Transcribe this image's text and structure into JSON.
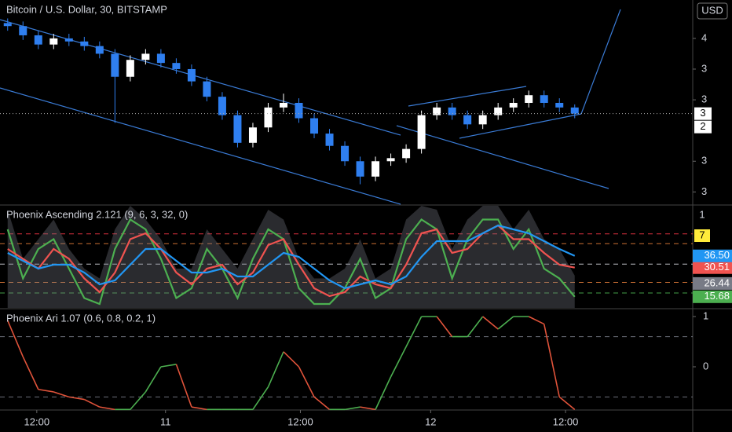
{
  "chart_data": [
    {
      "type": "candlestick",
      "title": "Bitcoin / U.S. Dollar, 30, BITSTAMP",
      "currency": "USD",
      "up_color": "#ffffff",
      "down_color": "#2f7ff0",
      "open": [
        4.1,
        4.08,
        4.02,
        3.96,
        4.0,
        3.98,
        3.95,
        3.9,
        3.75,
        3.86,
        3.9,
        3.84,
        3.8,
        3.72,
        3.62,
        3.5,
        3.32,
        3.42,
        3.55,
        3.58,
        3.48,
        3.38,
        3.3,
        3.2,
        3.1,
        3.2,
        3.22,
        3.28,
        3.5,
        3.55,
        3.5,
        3.44,
        3.5,
        3.55,
        3.58,
        3.63,
        3.58,
        3.55
      ],
      "high": [
        4.13,
        4.11,
        4.05,
        4.03,
        4.03,
        4.01,
        3.98,
        3.93,
        3.89,
        3.93,
        3.93,
        3.87,
        3.83,
        3.75,
        3.65,
        3.53,
        3.45,
        3.58,
        3.64,
        3.61,
        3.51,
        3.41,
        3.33,
        3.23,
        3.23,
        3.25,
        3.31,
        3.53,
        3.58,
        3.58,
        3.53,
        3.53,
        3.58,
        3.61,
        3.66,
        3.66,
        3.61,
        3.57
      ],
      "low": [
        4.05,
        3.99,
        3.93,
        3.93,
        3.95,
        3.92,
        3.87,
        3.45,
        3.72,
        3.83,
        3.81,
        3.77,
        3.69,
        3.59,
        3.47,
        3.29,
        3.29,
        3.39,
        3.52,
        3.45,
        3.35,
        3.27,
        3.17,
        3.05,
        3.07,
        3.17,
        3.19,
        3.25,
        3.47,
        3.47,
        3.41,
        3.41,
        3.47,
        3.52,
        3.55,
        3.55,
        3.52,
        3.48
      ],
      "close": [
        4.08,
        4.02,
        3.96,
        4.0,
        3.98,
        3.95,
        3.9,
        3.75,
        3.86,
        3.9,
        3.84,
        3.8,
        3.72,
        3.62,
        3.5,
        3.32,
        3.42,
        3.55,
        3.58,
        3.48,
        3.38,
        3.3,
        3.2,
        3.1,
        3.2,
        3.22,
        3.28,
        3.5,
        3.55,
        3.5,
        3.44,
        3.5,
        3.55,
        3.58,
        3.63,
        3.58,
        3.55,
        3.51
      ],
      "ylim": [
        2.92,
        4.25
      ],
      "yticks": [
        {
          "value": 4.0,
          "label": "4"
        },
        {
          "value": 3.8,
          "label": "3"
        },
        {
          "value": 3.6,
          "label": "3"
        },
        {
          "value": 3.2,
          "label": "3"
        },
        {
          "value": 3.0,
          "label": "3"
        }
      ],
      "price_labels": [
        "3",
        "2"
      ],
      "xlim": [
        -0.5,
        44.7
      ],
      "xticks": [
        {
          "value": 1.9,
          "label": "12:00"
        },
        {
          "value": 10.3,
          "label": "11"
        },
        {
          "value": 19.1,
          "label": "12:00"
        },
        {
          "value": 27.6,
          "label": "12"
        },
        {
          "value": 36.4,
          "label": "12:00"
        }
      ]
    },
    {
      "type": "line",
      "title": "Phoenix Ascending 2.121 (9, 6, 3, 32, 0)",
      "ylim": [
        10,
        62
      ],
      "right_labels": [
        "1",
        "7"
      ],
      "levels": [
        {
          "value": 47.7,
          "color": "#f23645"
        },
        {
          "value": 42.7,
          "color": "#e07b39"
        },
        {
          "value": 32.3,
          "color": "#d1d4dc"
        },
        {
          "value": 23.0,
          "color": "#e07b39"
        },
        {
          "value": 17.6,
          "color": "#4caf50"
        }
      ],
      "area": {
        "color": "#787b86",
        "last_label": "26.44",
        "values": [
          60,
          35,
          45,
          55,
          40,
          30,
          25,
          50,
          62,
          55,
          45,
          30,
          30,
          50,
          40,
          30,
          45,
          60,
          55,
          35,
          25,
          25,
          30,
          45,
          25,
          30,
          55,
          62,
          60,
          40,
          55,
          62,
          62,
          50,
          60,
          45,
          40,
          26.44
        ]
      },
      "series": [
        {
          "color": "#4caf50",
          "last_label": "15.68",
          "values": [
            50,
            25,
            40,
            45,
            30,
            15,
            12,
            40,
            55,
            50,
            35,
            15,
            20,
            40,
            30,
            15,
            35,
            50,
            45,
            20,
            12,
            12,
            20,
            35,
            15,
            20,
            45,
            55,
            50,
            25,
            45,
            55,
            55,
            40,
            50,
            30,
            25,
            15.68
          ]
        },
        {
          "color": "#f05350",
          "last_label": "30.51",
          "values": [
            40,
            35,
            30,
            40,
            35,
            25,
            18,
            28,
            45,
            48,
            40,
            28,
            22,
            30,
            32,
            22,
            28,
            42,
            45,
            32,
            20,
            16,
            18,
            26,
            22,
            20,
            32,
            48,
            50,
            38,
            40,
            48,
            52,
            45,
            45,
            38,
            32,
            30.51
          ]
        },
        {
          "color": "#2196f3",
          "last_label": "36.50",
          "values": [
            38,
            34,
            30,
            32,
            32,
            28,
            22,
            24,
            32,
            40,
            40,
            34,
            28,
            28,
            30,
            26,
            26,
            32,
            38,
            36,
            30,
            24,
            20,
            22,
            24,
            22,
            26,
            36,
            44,
            44,
            44,
            48,
            52,
            50,
            48,
            44,
            40,
            36.5
          ]
        }
      ]
    },
    {
      "type": "line",
      "title": "Phoenix Ari 1.07 (0.6, 0.8, 0.2, 1)",
      "ylim": [
        -0.86,
        1.125
      ],
      "yticks": [
        1,
        0
      ],
      "levels": [
        0.6,
        -0.6
      ],
      "up_color": "#4caf50",
      "down_color": "#e0533a",
      "values": [
        0.92,
        0.2,
        -0.45,
        -0.5,
        -0.6,
        -0.65,
        -0.8,
        -0.85,
        -0.85,
        -0.5,
        0.0,
        0.05,
        -0.8,
        -0.85,
        -0.85,
        -0.85,
        -0.85,
        -0.4,
        0.3,
        0.0,
        -0.6,
        -0.85,
        -0.85,
        -0.8,
        -0.85,
        -0.2,
        0.4,
        1.0,
        1.0,
        0.6,
        0.6,
        1.0,
        0.75,
        1.0,
        1.0,
        0.85,
        -0.6,
        -0.85
      ]
    }
  ]
}
